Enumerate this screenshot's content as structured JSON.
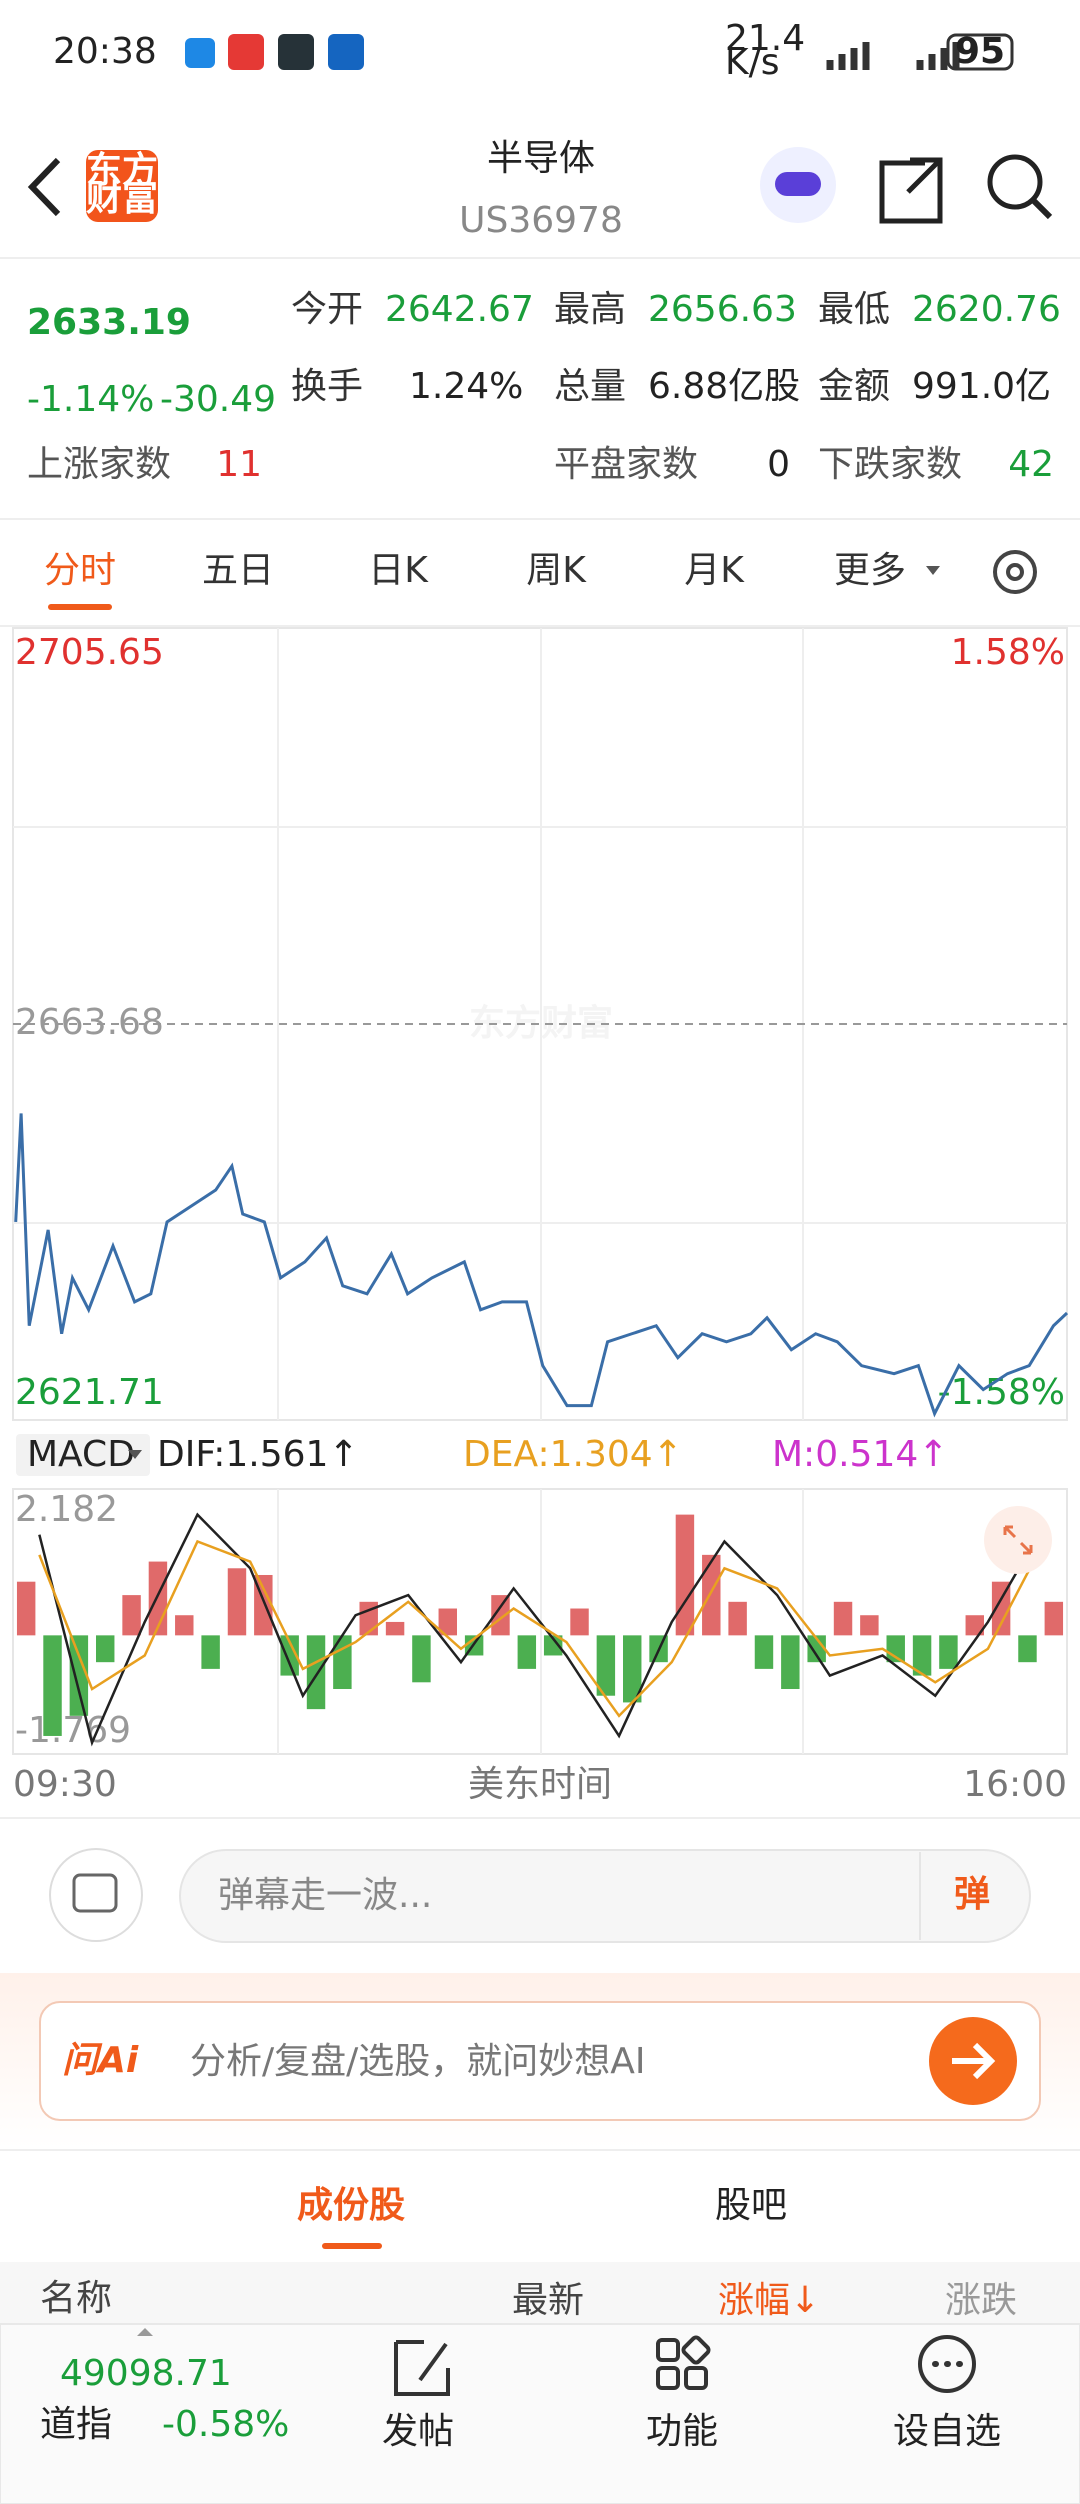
{
  "status_bar": {
    "time": "20:38",
    "speed_value": "21.4",
    "speed_unit": "K/s",
    "battery": "95"
  },
  "header": {
    "logo_line1": "东方",
    "logo_line2": "财富",
    "title": "半导体",
    "code": "US36978"
  },
  "quote": {
    "price": "2633.19",
    "change_pct": "-1.14%",
    "change": "-30.49",
    "stats": [
      {
        "label": "今开",
        "value": "2642.67",
        "color": "#1a9e3a"
      },
      {
        "label": "最高",
        "value": "2656.63",
        "color": "#1a9e3a"
      },
      {
        "label": "最低",
        "value": "2620.76",
        "color": "#1a9e3a"
      },
      {
        "label": "换手",
        "value": "1.24%",
        "color": "#222222"
      },
      {
        "label": "总量",
        "value": "6.88亿股",
        "color": "#222222"
      },
      {
        "label": "金额",
        "value": "991.0亿",
        "color": "#222222"
      }
    ],
    "breadth": [
      {
        "label": "上涨家数",
        "value": "11",
        "color": "#e0312f"
      },
      {
        "label": "平盘家数",
        "value": "0",
        "color": "#222222"
      },
      {
        "label": "下跌家数",
        "value": "42",
        "color": "#1a9e3a"
      }
    ]
  },
  "tabs": [
    "分时",
    "五日",
    "日K",
    "周K",
    "月K",
    "更多"
  ],
  "intraday_chart": {
    "type": "line",
    "watermark": "东方财富",
    "color": "#3a6ea8",
    "x": [
      1,
      3,
      6,
      13,
      18,
      22,
      28,
      37,
      45,
      51,
      57,
      66,
      75,
      81,
      85,
      93,
      99,
      108,
      116,
      122,
      131,
      140,
      146,
      155,
      167,
      173,
      181,
      190,
      196,
      205,
      214,
      220,
      229,
      238,
      246,
      255,
      264,
      273,
      279,
      288,
      297,
      305,
      314,
      326,
      335,
      341,
      350,
      359,
      368,
      376,
      385,
      390
    ],
    "values": [
      2642.7,
      2654.2,
      2631.7,
      2641.85,
      2630.85,
      2636.77,
      2633.39,
      2640.16,
      2634.23,
      2635.08,
      2642.7,
      2644.39,
      2646.08,
      2648.62,
      2643.54,
      2642.7,
      2636.77,
      2638.47,
      2641.0,
      2635.93,
      2635.08,
      2639.31,
      2635.08,
      2636.77,
      2638.47,
      2633.39,
      2634.23,
      2634.23,
      2627.47,
      2623.23,
      2623.23,
      2630.0,
      2630.85,
      2631.7,
      2628.31,
      2630.85,
      2630.0,
      2630.85,
      2632.54,
      2629.16,
      2630.85,
      2630.0,
      2627.47,
      2626.62,
      2627.47,
      2622.39,
      2627.47,
      2624.93,
      2626.62,
      2627.47,
      2631.7,
      2633.05
    ],
    "xlim": [
      0,
      390
    ],
    "xticks": [
      {
        "value": 0,
        "label": "09:30"
      },
      {
        "value": 390,
        "label": "16:00"
      }
    ],
    "xlabel": "美东时间",
    "ylim": [
      2621.71,
      2705.65
    ],
    "yticks": [
      2621.71,
      2663.68,
      2705.65
    ],
    "y2lim": [
      -1.58,
      1.58
    ],
    "y2ticks": [
      {
        "value": -1.58,
        "label": "-1.58%"
      },
      {
        "value": 1.58,
        "label": "1.58%"
      }
    ]
  },
  "macd_chart": {
    "type": "bar",
    "indicator": "MACD",
    "legend": [
      {
        "text": "DIF:1.561↑",
        "color": "#222222"
      },
      {
        "text": "DEA:1.304↑",
        "color": "#e8a020"
      },
      {
        "text": "M:0.514↑",
        "color": "#cc33cc"
      }
    ],
    "ylim": [
      -1.769,
      2.182
    ],
    "yticks": [
      2.182,
      -1.769
    ],
    "histogram": {
      "up_color": "#e06a6a",
      "down_color": "#4caf50",
      "values": [
        0.8,
        -1.5,
        -1.2,
        -0.4,
        0.6,
        1.1,
        0.3,
        -0.5,
        1.0,
        0.9,
        -0.6,
        -1.1,
        -0.8,
        0.5,
        0.2,
        -0.7,
        0.4,
        -0.3,
        0.6,
        -0.5,
        -0.3,
        0.4,
        -0.9,
        -1.0,
        -0.4,
        1.8,
        1.2,
        0.5,
        -0.5,
        -0.8,
        -0.4,
        0.5,
        0.3,
        -0.4,
        -0.6,
        -0.5,
        0.3,
        0.8,
        -0.4,
        0.5
      ]
    },
    "series": [
      {
        "name": "DIF",
        "color": "#222222",
        "values": [
          1.5,
          -1.6,
          0.2,
          1.8,
          1.0,
          -0.9,
          0.3,
          0.6,
          -0.4,
          0.7,
          -0.3,
          -1.5,
          0.2,
          1.4,
          0.6,
          -0.6,
          -0.3,
          -0.9,
          0.2,
          1.561
        ]
      },
      {
        "name": "DEA",
        "color": "#e8a020",
        "values": [
          1.2,
          -0.8,
          -0.3,
          1.4,
          1.1,
          -0.5,
          -0.1,
          0.5,
          -0.2,
          0.4,
          -0.1,
          -1.2,
          -0.4,
          1.0,
          0.7,
          -0.3,
          -0.2,
          -0.7,
          -0.2,
          1.304
        ]
      }
    ]
  },
  "comment_bar": {
    "placeholder": "弹幕走一波...",
    "button": "弹"
  },
  "ai_box": {
    "brand": "问Ai",
    "placeholder": "分析/复盘/选股，就问妙想AI"
  },
  "list_tabs": [
    "成份股",
    "股吧"
  ],
  "columns": [
    "名称",
    "最新",
    "涨幅↓",
    "涨跌"
  ],
  "bottom_nav": {
    "index_value": "49098.71",
    "index_name": "道指",
    "index_change": "-0.58%",
    "items": [
      "发帖",
      "功能",
      "设自选"
    ]
  }
}
